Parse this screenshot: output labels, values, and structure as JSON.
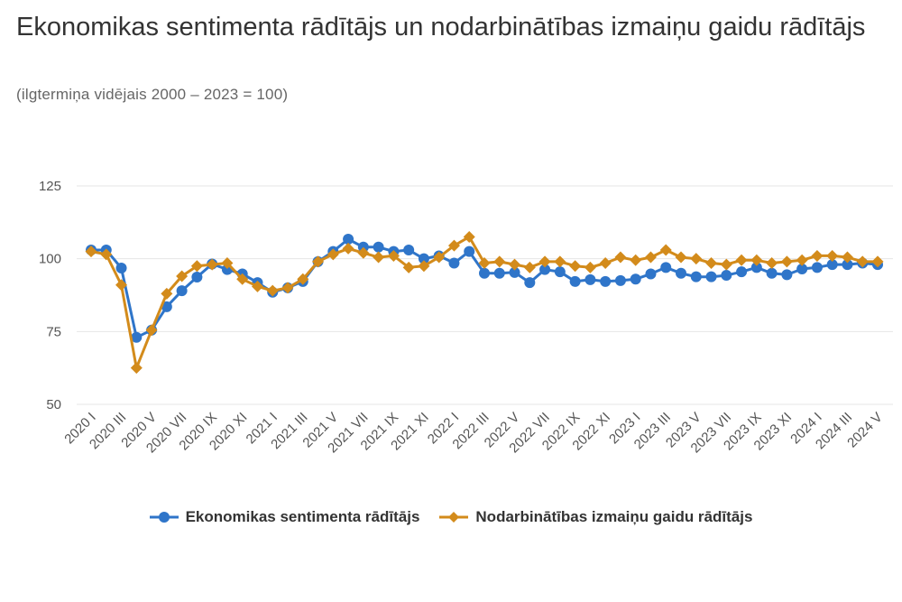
{
  "title": "Ekonomikas sentimenta rādītājs un nodarbinātības izmaiņu gaidu rādītājs",
  "subtitle": "(ilgtermiņa vidējais 2000 – 2023 = 100)",
  "chart_data": {
    "type": "line",
    "title": "Ekonomikas sentimenta rādītājs un nodarbinātības izmaiņu gaidu rādītājs",
    "subtitle": "(ilgtermiņa vidējais 2000 – 2023 = 100)",
    "xlabel": "",
    "ylabel": "",
    "ylim": [
      50,
      125
    ],
    "yticks": [
      50,
      75,
      100,
      125
    ],
    "grid": true,
    "legend_position": "bottom",
    "x": [
      "2020 I",
      "2020 II",
      "2020 III",
      "2020 IV",
      "2020 V",
      "2020 VI",
      "2020 VII",
      "2020 VIII",
      "2020 IX",
      "2020 X",
      "2020 XI",
      "2020 XII",
      "2021 I",
      "2021 II",
      "2021 III",
      "2021 IV",
      "2021 V",
      "2021 VI",
      "2021 VII",
      "2021 VIII",
      "2021 IX",
      "2021 X",
      "2021 XI",
      "2021 XII",
      "2022 I",
      "2022 II",
      "2022 III",
      "2022 IV",
      "2022 V",
      "2022 VI",
      "2022 VII",
      "2022 VIII",
      "2022 IX",
      "2022 X",
      "2022 XI",
      "2022 XII",
      "2023 I",
      "2023 II",
      "2023 III",
      "2023 IV",
      "2023 V",
      "2023 VI",
      "2023 VII",
      "2023 VIII",
      "2023 IX",
      "2023 X",
      "2023 XI",
      "2023 XII",
      "2024 I",
      "2024 II",
      "2024 III",
      "2024 IV",
      "2024 V"
    ],
    "xtick_labels": [
      "2020 I",
      "2020 III",
      "2020 V",
      "2020 VII",
      "2020 IX",
      "2020 XI",
      "2021 I",
      "2021 III",
      "2021 V",
      "2021 VII",
      "2021 IX",
      "2021 XI",
      "2022 I",
      "2022 III",
      "2022 V",
      "2022 VII",
      "2022 IX",
      "2022 XI",
      "2023 I",
      "2023 III",
      "2023 V",
      "2023 VII",
      "2023 IX",
      "2023 XI",
      "2024 I",
      "2024 III",
      "2024 V"
    ],
    "series": [
      {
        "name": "Ekonomikas sentimenta rādītājs",
        "color": "#2f75c9",
        "marker": "circle",
        "values": [
          103.0,
          103.0,
          96.8,
          73.0,
          75.5,
          83.5,
          89.0,
          93.7,
          98.2,
          96.3,
          94.8,
          91.8,
          88.5,
          90.0,
          92.2,
          99.0,
          102.5,
          106.7,
          104.0,
          104.0,
          102.5,
          103.0,
          100.0,
          101.0,
          98.5,
          102.5,
          95.0,
          95.0,
          95.3,
          91.8,
          96.3,
          95.5,
          92.2,
          92.8,
          92.2,
          92.5,
          93.0,
          94.8,
          97.0,
          95.0,
          93.8,
          93.8,
          94.3,
          95.5,
          97.0,
          95.0,
          94.5,
          96.5,
          97.0,
          98.0,
          98.0,
          98.5,
          98.0
        ]
      },
      {
        "name": "Nodarbinātības izmaiņu gaidu rādītājs",
        "color": "#d38b1b",
        "marker": "diamond",
        "values": [
          102.5,
          101.5,
          91.0,
          62.5,
          75.5,
          88.0,
          94.0,
          97.5,
          98.0,
          98.5,
          93.0,
          90.5,
          89.0,
          90.0,
          93.0,
          99.0,
          101.5,
          103.5,
          102.0,
          100.5,
          101.0,
          97.0,
          97.5,
          100.5,
          104.5,
          107.5,
          98.5,
          99.0,
          98.0,
          97.0,
          99.0,
          99.0,
          97.5,
          97.0,
          98.5,
          100.5,
          99.5,
          100.5,
          103.0,
          100.5,
          100.0,
          98.5,
          98.0,
          99.5,
          99.5,
          98.5,
          99.0,
          99.5,
          101.0,
          101.0,
          100.5,
          99.0,
          99.0
        ]
      }
    ]
  }
}
